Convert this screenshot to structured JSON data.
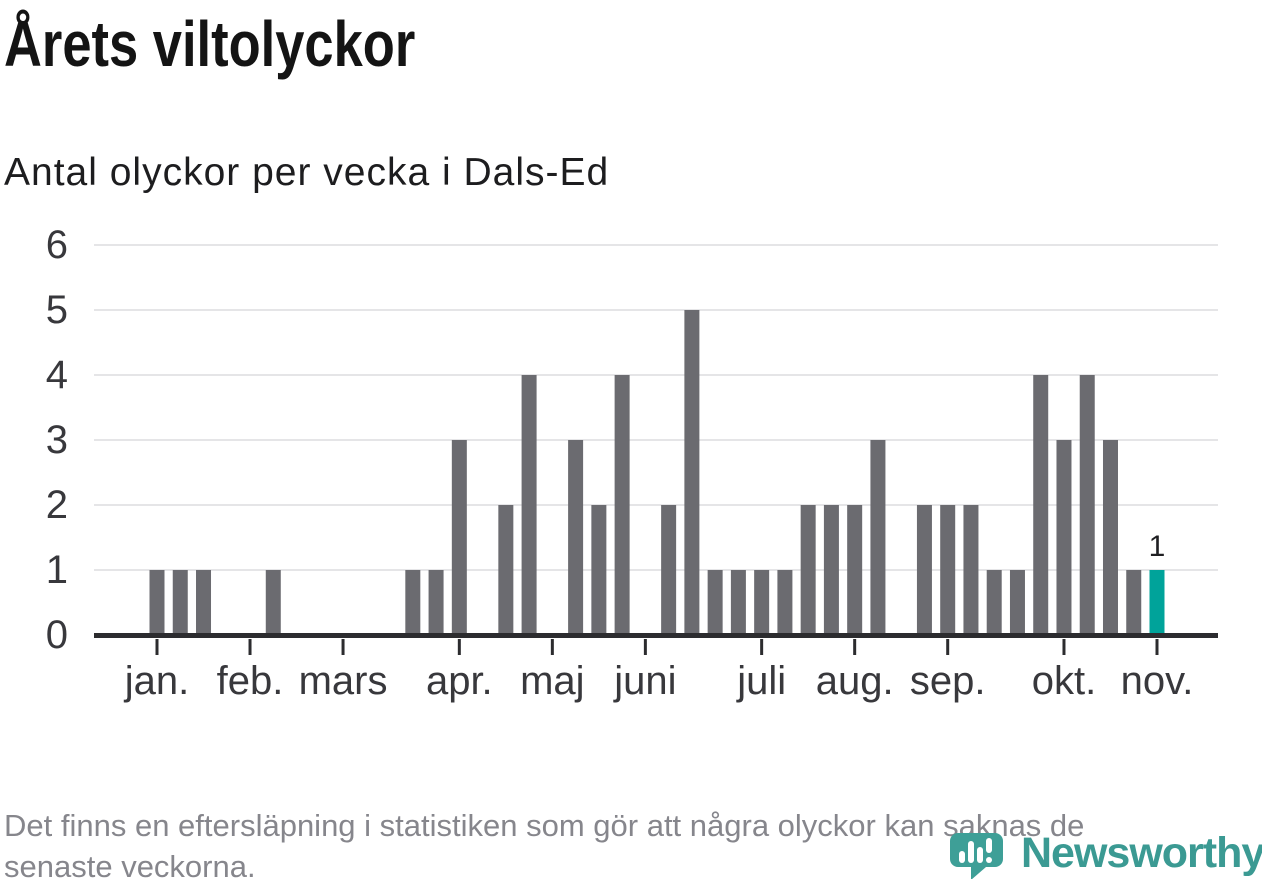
{
  "header": {
    "title": "Årets viltolyckor",
    "subtitle": "Antal olyckor per vecka i Dals-Ed"
  },
  "footnote": {
    "line1": "Det finns en eftersläpning i statistiken som gör att några olyckor kan saknas de",
    "line2": "senaste veckorna."
  },
  "branding": {
    "name": "Newsworthy",
    "icon": "newsworthy-speech-bubble-bar-chart-icon",
    "color": "#3b9a93"
  },
  "chart_data": {
    "type": "bar",
    "title": "Årets viltolyckor",
    "subtitle": "Antal olyckor per vecka i Dals-Ed",
    "x_unit": "week",
    "weeks": [
      1,
      2,
      3,
      4,
      5,
      6,
      7,
      8,
      9,
      10,
      11,
      12,
      13,
      14,
      15,
      16,
      17,
      18,
      19,
      20,
      21,
      22,
      23,
      24,
      25,
      26,
      27,
      28,
      29,
      30,
      31,
      32,
      33,
      34,
      35,
      36,
      37,
      38,
      39,
      40,
      41,
      42,
      43,
      44
    ],
    "values": [
      1,
      1,
      1,
      0,
      0,
      1,
      0,
      0,
      0,
      0,
      0,
      1,
      1,
      3,
      0,
      2,
      4,
      0,
      3,
      2,
      4,
      0,
      2,
      5,
      1,
      1,
      1,
      1,
      2,
      2,
      2,
      3,
      0,
      2,
      2,
      2,
      1,
      1,
      4,
      3,
      4,
      3,
      1,
      1
    ],
    "highlight_index": 43,
    "highlight_label": "1",
    "ylim": [
      0,
      6
    ],
    "yticks": [
      0,
      1,
      2,
      3,
      4,
      5,
      6
    ],
    "grid": "horizontal",
    "legend": "none",
    "month_ticks": [
      {
        "label": "jan.",
        "week": 1
      },
      {
        "label": "feb.",
        "week": 5
      },
      {
        "label": "mars",
        "week": 9
      },
      {
        "label": "apr.",
        "week": 14
      },
      {
        "label": "maj",
        "week": 18
      },
      {
        "label": "juni",
        "week": 22
      },
      {
        "label": "juli",
        "week": 27
      },
      {
        "label": "aug.",
        "week": 31
      },
      {
        "label": "sep.",
        "week": 35
      },
      {
        "label": "okt.",
        "week": 40
      },
      {
        "label": "nov.",
        "week": 44
      }
    ],
    "colors": {
      "bar": "#6b6b70",
      "highlight": "#00a39a",
      "grid": "#e5e5e7",
      "axis": "#2c2c2f",
      "tick_text": "#38383c",
      "data_label": "#1f1f22"
    }
  }
}
